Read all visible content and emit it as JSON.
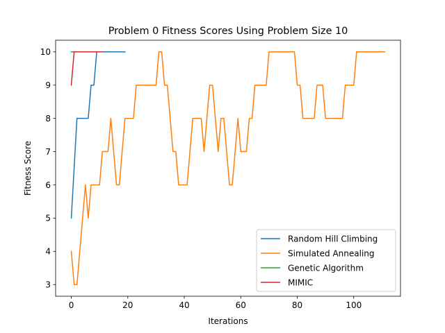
{
  "chart_data": {
    "type": "line",
    "title": "Problem 0 Fitness Scores Using Problem Size 10",
    "xlabel": "Iterations",
    "ylabel": "Fitness Score",
    "xlim": [
      -5.55,
      116.55
    ],
    "ylim": [
      2.65,
      10.35
    ],
    "xticks": [
      0,
      20,
      40,
      60,
      80,
      100
    ],
    "yticks": [
      3,
      4,
      5,
      6,
      7,
      8,
      9,
      10
    ],
    "grid": false,
    "legend_position": "lower-right",
    "series": [
      {
        "name": "Random Hill Climbing",
        "color": "#1f77b4",
        "values": [
          5,
          6.5,
          8,
          8,
          8,
          8,
          8,
          9,
          9,
          10,
          10,
          10,
          10,
          10,
          10,
          10,
          10,
          10,
          10,
          10
        ]
      },
      {
        "name": "Simulated Annealing",
        "color": "#ff7f0e",
        "values": [
          4,
          3,
          3,
          4,
          5,
          6,
          5,
          6,
          6,
          6,
          6,
          7,
          7,
          7,
          8,
          7,
          6,
          6,
          7,
          8,
          8,
          8,
          8,
          9,
          9,
          9,
          9,
          9,
          9,
          9,
          9,
          10,
          10,
          9,
          9,
          8,
          7,
          7,
          6,
          6,
          6,
          6,
          7,
          8,
          8,
          8,
          8,
          7,
          8,
          9,
          9,
          8,
          7,
          8,
          8,
          7,
          6,
          6,
          7,
          8,
          7,
          7,
          7,
          8,
          8,
          9,
          9,
          9,
          9,
          9,
          10,
          10,
          10,
          10,
          10,
          10,
          10,
          10,
          10,
          10,
          9,
          9,
          8,
          8,
          8,
          8,
          8,
          9,
          9,
          9,
          8,
          8,
          8,
          8,
          8,
          8,
          8,
          9,
          9,
          9,
          9,
          10,
          10,
          10,
          10,
          10,
          10,
          10,
          10,
          10,
          10,
          10
        ]
      },
      {
        "name": "Genetic Algorithm",
        "color": "#2ca02c",
        "values": [
          10,
          10,
          10,
          10,
          10,
          10,
          10,
          10,
          10,
          10,
          10
        ]
      },
      {
        "name": "MIMIC",
        "color": "#d62728",
        "values": [
          9,
          10,
          10,
          10,
          10,
          10,
          10,
          10,
          10,
          10,
          10,
          10
        ]
      }
    ]
  }
}
